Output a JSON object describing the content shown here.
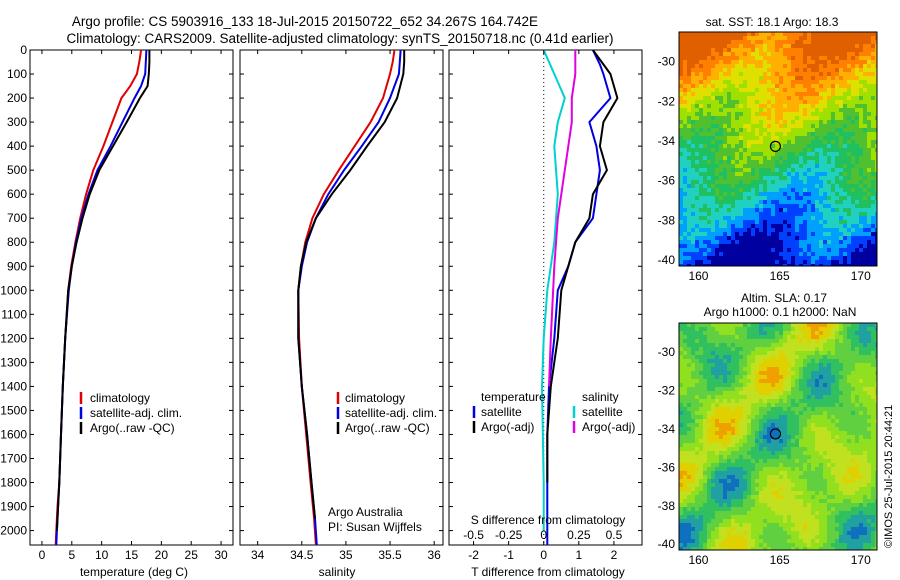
{
  "figure": {
    "title_line1": "Argo profile: CS 5903916_133 18-Jul-2015 20150722_652 34.267S 164.742E",
    "title_line2": "Climatology: CARS2009. Satellite-adjusted climatology: synTS_20150718.nc (0.41d earlier)",
    "timestamp": "©IMOS 25-Jul-2015 20:44:21"
  },
  "chart_data": [
    {
      "type": "line",
      "id": "temperature",
      "xlabel": "temperature (deg C)",
      "xlim": [
        -2,
        32
      ],
      "xticks": [
        0,
        5,
        10,
        15,
        20,
        25,
        30
      ],
      "ylim": [
        0,
        2060
      ],
      "yticks": [
        0,
        100,
        200,
        300,
        400,
        500,
        600,
        700,
        800,
        900,
        1000,
        1100,
        1200,
        1300,
        1400,
        1500,
        1600,
        1700,
        1800,
        1900,
        2000
      ],
      "legend": [
        "climatology",
        "satellite-adj. clim.",
        "Argo(..raw -QC)"
      ],
      "legend_colors": [
        "#e00000",
        "#0000e0",
        "#000000"
      ],
      "series": [
        {
          "name": "climatology",
          "color": "#e00000",
          "x": [
            16.6,
            16.3,
            15.9,
            14.8,
            13.3,
            11.8,
            10.3,
            8.6,
            7.4,
            6.4,
            5.6,
            4.9,
            4.4,
            3.9,
            3.5,
            3.2,
            2.9,
            2.6,
            2.4,
            2.3
          ],
          "y": [
            0,
            50,
            100,
            150,
            200,
            300,
            400,
            500,
            600,
            700,
            800,
            900,
            1000,
            1200,
            1400,
            1600,
            1800,
            1900,
            2000,
            2060
          ]
        },
        {
          "name": "satellite-adj. clim.",
          "color": "#0000e0",
          "x": [
            17.5,
            17.4,
            17.3,
            16.6,
            15.5,
            13.5,
            11.5,
            9.3,
            7.8,
            6.6,
            5.7,
            5.0,
            4.5,
            3.9,
            3.5,
            3.2,
            2.9,
            2.7,
            2.5,
            2.4
          ],
          "y": [
            0,
            50,
            100,
            150,
            200,
            300,
            400,
            500,
            600,
            700,
            800,
            900,
            1000,
            1200,
            1400,
            1600,
            1800,
            1900,
            2000,
            2060
          ]
        },
        {
          "name": "Argo(..raw -QC)",
          "color": "#000000",
          "x": [
            18.0,
            18.0,
            17.9,
            17.7,
            16.4,
            14.2,
            11.9,
            9.6,
            8.0,
            6.8,
            5.8,
            5.0,
            4.4,
            3.9,
            3.5,
            3.2,
            2.9,
            2.7,
            2.5
          ],
          "y": [
            0,
            50,
            100,
            150,
            200,
            300,
            400,
            500,
            600,
            700,
            800,
            900,
            1000,
            1200,
            1400,
            1600,
            1800,
            1900,
            2000
          ]
        }
      ]
    },
    {
      "type": "line",
      "id": "salinity",
      "xlabel": "salinity",
      "xlim": [
        33.8,
        36.1
      ],
      "xticks": [
        34,
        34.5,
        35,
        35.5,
        36
      ],
      "ylim": [
        0,
        2060
      ],
      "legend": [
        "climatology",
        "satellite-adj. clim.",
        "Argo(..raw -QC)"
      ],
      "legend_colors": [
        "#e00000",
        "#0000e0",
        "#000000"
      ],
      "annotations": [
        "Argo Australia",
        "PI: Susan Wijffels"
      ],
      "series": [
        {
          "name": "climatology",
          "color": "#e00000",
          "x": [
            35.55,
            35.53,
            35.5,
            35.42,
            35.28,
            35.1,
            34.92,
            34.75,
            34.62,
            34.54,
            34.49,
            34.46,
            34.47,
            34.5,
            34.55,
            34.6,
            34.64,
            34.66
          ],
          "y": [
            0,
            50,
            100,
            200,
            300,
            400,
            500,
            600,
            700,
            800,
            900,
            1000,
            1200,
            1400,
            1600,
            1800,
            1950,
            2060
          ]
        },
        {
          "name": "satellite-adj. clim.",
          "color": "#0000e0",
          "x": [
            35.62,
            35.61,
            35.6,
            35.5,
            35.37,
            35.18,
            34.98,
            34.8,
            34.66,
            34.56,
            34.5,
            34.46,
            34.46,
            34.5,
            34.56,
            34.61,
            34.65,
            34.67
          ],
          "y": [
            0,
            50,
            100,
            200,
            300,
            400,
            500,
            600,
            700,
            800,
            900,
            1000,
            1200,
            1400,
            1600,
            1800,
            1950,
            2060
          ]
        },
        {
          "name": "Argo(..raw -QC)",
          "color": "#000000",
          "x": [
            35.66,
            35.66,
            35.65,
            35.58,
            35.44,
            35.24,
            35.05,
            34.84,
            34.66,
            34.55,
            34.49,
            34.46,
            34.46,
            34.5,
            34.56,
            34.61,
            34.65
          ],
          "y": [
            0,
            50,
            100,
            200,
            300,
            400,
            500,
            600,
            700,
            800,
            900,
            1000,
            1200,
            1400,
            1600,
            1800,
            1950
          ]
        }
      ]
    },
    {
      "type": "line",
      "id": "difference",
      "xlabel": "T difference from climatology",
      "xlabel2": "S difference from climatology",
      "xlim": [
        -2.7,
        2.8
      ],
      "xticks": [
        -2,
        -1,
        0,
        1,
        2
      ],
      "xticks_top": [
        "-0.5",
        "-0.25",
        "0",
        "0.25",
        "0.5"
      ],
      "ylim": [
        0,
        2060
      ],
      "legend_temperature_title": "temperature",
      "legend_salinity_title": "salinity",
      "legend_temperature": [
        "satellite",
        "Argo(-adj)"
      ],
      "legend_salinity": [
        "satellite",
        "Argo(-adj)"
      ],
      "series": [
        {
          "name": "temperature satellite",
          "color": "#0000e0",
          "x": [
            1.4,
            1.6,
            1.7,
            1.9,
            1.3,
            1.5,
            1.6,
            1.5,
            1.4,
            0.9,
            0.7,
            0.4,
            0.3,
            0.15,
            0.1,
            0.1,
            0.1
          ],
          "y": [
            0,
            60,
            100,
            200,
            300,
            400,
            500,
            600,
            700,
            800,
            900,
            1000,
            1200,
            1400,
            1600,
            1800,
            2060
          ]
        },
        {
          "name": "temperature Argo(-adj)",
          "color": "#000000",
          "x": [
            1.4,
            1.7,
            1.9,
            2.0,
            2.1,
            1.7,
            1.6,
            1.8,
            1.4,
            1.3,
            0.9,
            0.5,
            0.4,
            0.2,
            0.1,
            0.1
          ],
          "y": [
            0,
            60,
            100,
            150,
            200,
            300,
            400,
            500,
            600,
            700,
            800,
            1000,
            1200,
            1400,
            1600,
            1800
          ]
        },
        {
          "name": "salinity satellite",
          "color": "#00d0d0",
          "x": [
            0.0,
            0.3,
            0.6,
            0.4,
            0.3,
            0.4,
            0.3,
            0.1,
            0.0,
            -0.05,
            0.0,
            0.0
          ],
          "y": [
            0,
            100,
            200,
            300,
            400,
            600,
            800,
            1000,
            1200,
            1400,
            1800,
            2000
          ]
        },
        {
          "name": "salinity Argo(-adj)",
          "color": "#e000e0",
          "x": [
            0.9,
            0.9,
            0.8,
            0.8,
            0.7,
            0.6,
            0.5,
            0.4,
            0.3,
            0.2,
            0.15
          ],
          "y": [
            0,
            100,
            200,
            300,
            400,
            500,
            600,
            700,
            900,
            1200,
            1400
          ]
        }
      ]
    },
    {
      "type": "heatmap",
      "id": "sst_map",
      "title": "sat. SST: 18.1 Argo: 18.3",
      "xticks": [
        160,
        165,
        170
      ],
      "yticks": [
        -30,
        -32,
        -34,
        -36,
        -38,
        -40
      ],
      "xlim": [
        158.8,
        171
      ],
      "ylim": [
        -40.3,
        -28.5
      ],
      "marker": {
        "lon": 164.742,
        "lat": -34.267
      }
    },
    {
      "type": "heatmap",
      "id": "sla_map",
      "title_line1": "Altim. SLA: 0.17",
      "title_line2": "Argo h1000: 0.1 h2000: NaN",
      "xticks": [
        160,
        165,
        170
      ],
      "yticks": [
        -30,
        -32,
        -34,
        -36,
        -38,
        -40
      ],
      "xlim": [
        158.8,
        171
      ],
      "ylim": [
        -40.3,
        -28.5
      ],
      "marker": {
        "lon": 164.742,
        "lat": -34.267
      }
    }
  ]
}
